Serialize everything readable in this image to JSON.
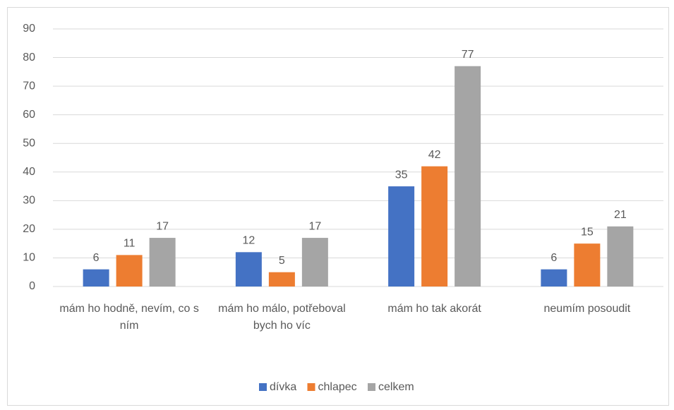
{
  "chart_data": {
    "type": "bar",
    "categories": [
      "mám ho hodně, nevím, co s ním",
      "mám ho málo, potřeboval bych ho víc",
      "mám ho tak akorát",
      "neumím posoudit"
    ],
    "series": [
      {
        "name": "dívka",
        "color": "#4472c4",
        "values": [
          6,
          12,
          35,
          6
        ]
      },
      {
        "name": "chlapec",
        "color": "#ed7d31",
        "values": [
          11,
          5,
          42,
          15
        ]
      },
      {
        "name": "celkem",
        "color": "#a5a5a5",
        "values": [
          17,
          17,
          77,
          21
        ]
      }
    ],
    "ylim": [
      0,
      90
    ],
    "yticks": [
      0,
      10,
      20,
      30,
      40,
      50,
      60,
      70,
      80,
      90
    ],
    "grid": true,
    "legend": "bottom"
  }
}
